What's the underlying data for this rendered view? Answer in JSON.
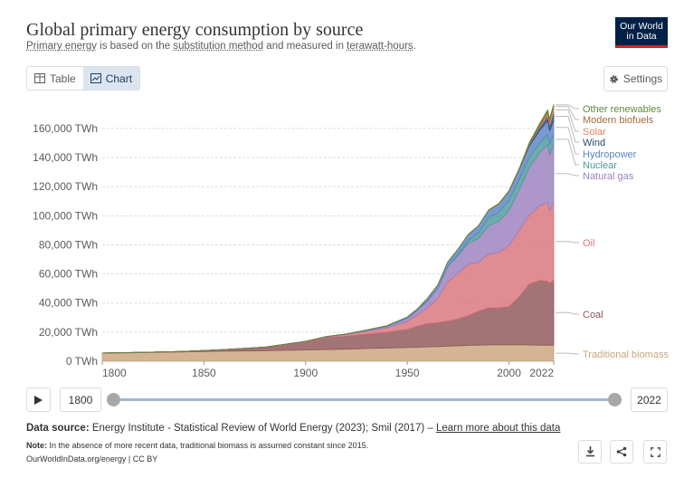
{
  "header": {
    "title": "Global primary energy consumption by source",
    "subtitle_parts": {
      "a": "Primary energy",
      "b": " is based on the ",
      "c": "substitution method",
      "d": " and measured in ",
      "e": "terawatt-hours",
      "f": "."
    }
  },
  "logo": {
    "line1": "Our World",
    "line2": "in Data"
  },
  "tabs": {
    "table_label": "Table",
    "chart_label": "Chart",
    "active": "Chart"
  },
  "settings_label": "Settings",
  "timeline": {
    "start_year": "1800",
    "end_year": "2022"
  },
  "footer": {
    "source_label": "Data source:",
    "source_text": " Energy Institute - Statistical Review of World Energy (2023); Smil (2017) – ",
    "source_link": "Learn more about this data",
    "note_label": "Note:",
    "note_text": " In the absence of more recent data, traditional biomass is assumed constant since 2015.",
    "credit": "OurWorldInData.org/energy | CC BY"
  },
  "colors": {
    "traditional_biomass": "#c9a57c",
    "coal": "#8f5558",
    "oil": "#d9737b",
    "natural_gas": "#9b7fbd",
    "nuclear": "#4c9a9b",
    "hydropower": "#5c84c4",
    "wind": "#2c4a7a",
    "solar": "#e3835f",
    "modern_biofuels": "#a36a3a",
    "other_renewables": "#5c8a3a"
  },
  "chart_data": {
    "type": "area",
    "stacked": true,
    "x": [
      1800,
      1820,
      1840,
      1860,
      1880,
      1900,
      1910,
      1920,
      1930,
      1940,
      1950,
      1955,
      1960,
      1965,
      1970,
      1975,
      1980,
      1985,
      1990,
      1995,
      2000,
      2005,
      2010,
      2015,
      2019,
      2020,
      2022
    ],
    "series": [
      {
        "name": "Traditional biomass",
        "color": "#c9a57c",
        "values": [
          5560,
          5900,
          6400,
          6900,
          7200,
          7700,
          8000,
          8300,
          8700,
          9000,
          9400,
          9600,
          9900,
          10100,
          10400,
          10600,
          10900,
          11100,
          11200,
          11300,
          11300,
          11400,
          11200,
          11100,
          11100,
          11100,
          11100
        ]
      },
      {
        "name": "Coal",
        "color": "#8f5558",
        "values": [
          100,
          200,
          400,
          1100,
          2500,
          5700,
          8300,
          9000,
          10000,
          11000,
          12600,
          14500,
          16000,
          16400,
          17300,
          18500,
          20500,
          23300,
          25600,
          25500,
          26300,
          33100,
          41900,
          44400,
          43900,
          42400,
          44800
        ]
      },
      {
        "name": "Oil",
        "color": "#d9737b",
        "values": [
          0,
          0,
          0,
          0,
          30,
          200,
          400,
          1000,
          1900,
          3000,
          5400,
          7800,
          11000,
          16700,
          27000,
          31400,
          35200,
          33700,
          36700,
          38000,
          41900,
          45300,
          47300,
          51300,
          54300,
          49800,
          52900
        ]
      },
      {
        "name": "Natural gas",
        "color": "#9b7fbd",
        "values": [
          0,
          0,
          0,
          0,
          0,
          60,
          170,
          270,
          570,
          900,
          2100,
          3000,
          4600,
          6900,
          10500,
          12200,
          14500,
          16300,
          19600,
          21300,
          24100,
          27800,
          32600,
          36300,
          39700,
          38800,
          40400
        ]
      },
      {
        "name": "Nuclear",
        "color": "#4c9a9b",
        "values": [
          0,
          0,
          0,
          0,
          0,
          0,
          0,
          0,
          0,
          0,
          0,
          0,
          0,
          30,
          200,
          1000,
          2000,
          4000,
          5600,
          6200,
          7000,
          7400,
          7300,
          6700,
          7100,
          6800,
          6700
        ]
      },
      {
        "name": "Hydropower",
        "color": "#5c84c4",
        "values": [
          0,
          0,
          0,
          0,
          0,
          10,
          50,
          150,
          300,
          500,
          900,
          1100,
          1800,
          2300,
          3000,
          3500,
          4100,
          4600,
          5000,
          5700,
          6000,
          6500,
          7600,
          8700,
          9300,
          9700,
          9700
        ]
      },
      {
        "name": "Wind",
        "color": "#2c4a7a",
        "values": [
          0,
          0,
          0,
          0,
          0,
          0,
          0,
          0,
          0,
          0,
          0,
          0,
          0,
          0,
          0,
          0,
          0,
          0,
          10,
          20,
          80,
          250,
          900,
          2200,
          3500,
          4000,
          5500
        ]
      },
      {
        "name": "Solar",
        "color": "#e3835f",
        "values": [
          0,
          0,
          0,
          0,
          0,
          0,
          0,
          0,
          0,
          0,
          0,
          0,
          0,
          0,
          0,
          0,
          0,
          0,
          0,
          0,
          5,
          10,
          100,
          700,
          1900,
          2300,
          3400
        ]
      },
      {
        "name": "Modern biofuels",
        "color": "#a36a3a",
        "values": [
          0,
          0,
          0,
          0,
          0,
          0,
          0,
          0,
          0,
          0,
          0,
          0,
          0,
          0,
          0,
          0,
          20,
          60,
          120,
          140,
          170,
          280,
          800,
          1100,
          1200,
          1100,
          1200
        ]
      },
      {
        "name": "Other renewables",
        "color": "#5c8a3a",
        "values": [
          0,
          0,
          0,
          0,
          0,
          0,
          0,
          0,
          0,
          0,
          0,
          0,
          0,
          0,
          30,
          60,
          120,
          170,
          230,
          300,
          400,
          500,
          600,
          750,
          850,
          900,
          950
        ]
      }
    ],
    "legend_labels": [
      {
        "name": "Other renewables",
        "color": "#5c8a3a"
      },
      {
        "name": "Modern biofuels",
        "color": "#a36a3a"
      },
      {
        "name": "Solar",
        "color": "#e3835f"
      },
      {
        "name": "Wind",
        "color": "#2c4a7a"
      },
      {
        "name": "Hydropower",
        "color": "#5c84c4"
      },
      {
        "name": "Nuclear",
        "color": "#4c9a9b"
      },
      {
        "name": "Natural gas",
        "color": "#9b7fbd"
      },
      {
        "name": "Oil",
        "color": "#d9737b"
      },
      {
        "name": "Coal",
        "color": "#8f5558"
      },
      {
        "name": "Traditional biomass",
        "color": "#c9a57c"
      }
    ],
    "y_ticks": [
      "0 TWh",
      "20,000 TWh",
      "40,000 TWh",
      "60,000 TWh",
      "80,000 TWh",
      "100,000 TWh",
      "120,000 TWh",
      "140,000 TWh",
      "160,000 TWh"
    ],
    "y_tick_values": [
      0,
      20000,
      40000,
      60000,
      80000,
      100000,
      120000,
      140000,
      160000
    ],
    "x_ticks": [
      "1800",
      "1850",
      "1900",
      "1950",
      "2000",
      "2022"
    ],
    "x_tick_values": [
      1800,
      1850,
      1900,
      1950,
      2000,
      2022
    ],
    "xlim": [
      1800,
      2022
    ],
    "ylim": [
      0,
      178000
    ],
    "grid": true,
    "legend_position": "right"
  }
}
